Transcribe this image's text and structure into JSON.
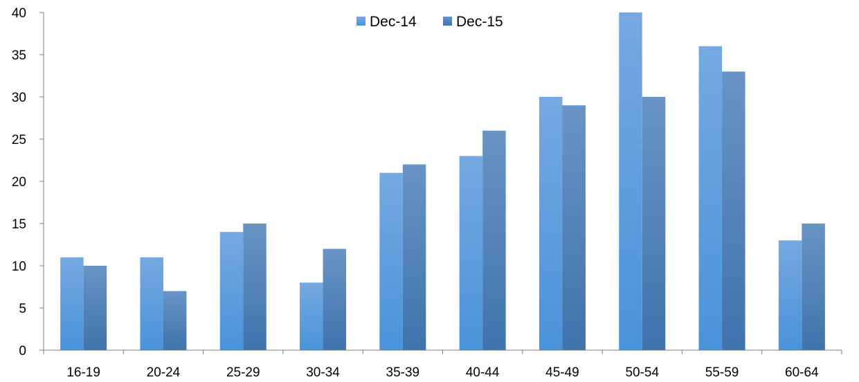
{
  "chart_data": {
    "type": "bar",
    "title": "",
    "xlabel": "",
    "ylabel": "",
    "categories": [
      "16-19",
      "20-24",
      "25-29",
      "30-34",
      "35-39",
      "40-44",
      "45-49",
      "50-54",
      "55-59",
      "60-64"
    ],
    "series": [
      {
        "name": "Dec-14",
        "values": [
          11,
          11,
          14,
          8,
          21,
          23,
          30,
          40,
          36,
          13
        ]
      },
      {
        "name": "Dec-15",
        "values": [
          10,
          7,
          15,
          12,
          22,
          26,
          29,
          30,
          33,
          15
        ]
      }
    ],
    "ylim": [
      0,
      40
    ],
    "yticks": [
      "0",
      "5",
      "10",
      "15",
      "20",
      "25",
      "30",
      "35",
      "40"
    ],
    "grid": false,
    "legend_position": "top-center"
  },
  "colors": {
    "dec14_top": "#75a9e1",
    "dec14_bottom": "#4a93d9",
    "dec15_top": "#6894c6",
    "dec15_bottom": "#3f73ab",
    "axis": "#7f7f7f"
  }
}
